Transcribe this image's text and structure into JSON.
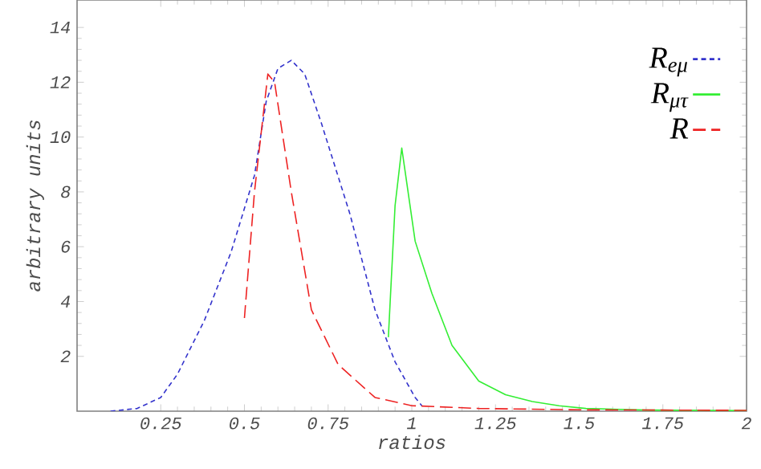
{
  "chart_data": {
    "type": "line",
    "xlabel": "ratios",
    "ylabel": "arbitrary units",
    "xlim": [
      0,
      2
    ],
    "ylim": [
      0,
      15
    ],
    "xticks": [
      0.25,
      0.5,
      0.75,
      1,
      1.25,
      1.5,
      1.75,
      2
    ],
    "yticks": [
      2,
      4,
      6,
      8,
      10,
      12,
      14
    ],
    "legend": "top right",
    "series": [
      {
        "name": "R$_{eμ}$",
        "color": "#3333cc",
        "line_style": "dotted",
        "x": [
          0.1,
          0.18,
          0.25,
          0.3,
          0.38,
          0.46,
          0.53,
          0.565,
          0.6,
          0.64,
          0.68,
          0.73,
          0.815,
          0.89,
          0.95,
          1.01,
          1.03
        ],
        "values": [
          0,
          0.1,
          0.5,
          1.35,
          3.3,
          5.8,
          8.6,
          11.3,
          12.5,
          12.8,
          12.3,
          10.5,
          7.2,
          3.7,
          1.8,
          0.5,
          0.2
        ]
      },
      {
        "name": "R$_{μτ}$",
        "color": "#33ee33",
        "line_style": "solid",
        "x": [
          0.93,
          0.95,
          0.97,
          1.01,
          1.06,
          1.12,
          1.2,
          1.28,
          1.36,
          1.44,
          1.52,
          1.7,
          2
        ],
        "values": [
          2.7,
          7.5,
          9.6,
          6.2,
          4.3,
          2.4,
          1.1,
          0.6,
          0.35,
          0.2,
          0.1,
          0.04,
          0.02
        ]
      },
      {
        "name": "R",
        "color": "#ee2222",
        "line_style": "dashed",
        "x": [
          0.5,
          0.53,
          0.57,
          0.59,
          0.64,
          0.7,
          0.78,
          0.89,
          1,
          1.2,
          1.5,
          2
        ],
        "values": [
          3.4,
          8,
          12.3,
          12,
          8,
          3.7,
          1.7,
          0.5,
          0.2,
          0.1,
          0.05,
          0.03
        ]
      }
    ]
  }
}
